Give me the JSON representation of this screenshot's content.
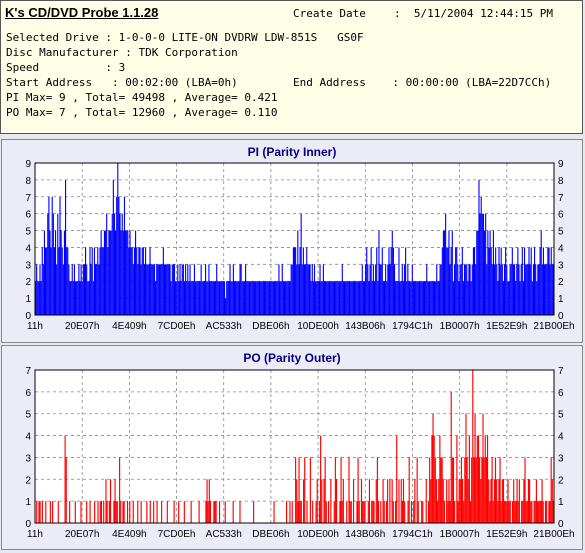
{
  "app": {
    "title": "K's CD/DVD Probe 1.1.28"
  },
  "info": {
    "create_date_label": "Create Date",
    "create_date_value": ":  5/11/2004 12:44:15 PM",
    "drive_line": "Selected Drive : 1-0-0-0 LITE-ON DVDRW LDW-851S   GS0F",
    "manufacturer_line": "Disc Manufacturer : TDK Corporation",
    "speed_line": "Speed          : 3",
    "start_address_line": "Start Address   : 00:02:00 (LBA=0h)",
    "end_address_line": "End Address    : 00:00:00 (LBA=22D7CCh)",
    "pi_summary": "PI Max= 9 , Total= 49498 , Average= 0.421",
    "po_summary": "PO Max= 7 , Total= 12960 , Average= 0.110"
  },
  "chart_data": [
    {
      "type": "bar",
      "title": "PI (Parity Inner)",
      "color": "#0000ff",
      "ylim": [
        0,
        9
      ],
      "yticks": [
        0,
        1,
        2,
        3,
        4,
        5,
        6,
        7,
        8,
        9
      ],
      "xticks": [
        "11h",
        "20E07h",
        "4E409h",
        "7CD0Eh",
        "AC533h",
        "DBE06h",
        "10DE00h",
        "143B06h",
        "1794C1h",
        "1B0007h",
        "1E52E9h",
        "21B00Eh"
      ],
      "grid": true,
      "values": [
        2,
        3,
        2,
        2,
        3,
        2,
        4,
        3,
        5,
        4,
        4,
        6,
        7,
        5,
        4,
        7,
        6,
        4,
        5,
        3,
        6,
        4,
        7,
        5,
        4,
        3,
        5,
        8,
        4,
        4,
        3,
        2,
        2,
        3,
        2,
        3,
        2,
        2,
        2,
        3,
        2,
        3,
        2,
        3,
        3,
        4,
        3,
        2,
        2,
        4,
        3,
        4,
        2,
        4,
        3,
        3,
        4,
        3,
        4,
        5,
        4,
        4,
        5,
        5,
        6,
        4,
        5,
        5,
        5,
        6,
        8,
        6,
        5,
        7,
        9,
        7,
        6,
        5,
        6,
        5,
        7,
        5,
        5,
        5,
        4,
        5,
        4,
        4,
        3,
        4,
        5,
        4,
        3,
        4,
        4,
        3,
        4,
        4,
        3,
        4,
        3,
        3,
        3,
        4,
        3,
        3,
        3,
        3,
        2,
        3,
        3,
        3,
        3,
        3,
        3,
        4,
        3,
        3,
        3,
        3,
        3,
        3,
        2,
        3,
        3,
        3,
        2,
        2,
        3,
        2,
        3,
        2,
        3,
        3,
        2,
        3,
        2,
        3,
        2,
        3,
        2,
        2,
        2,
        3,
        2,
        2,
        2,
        2,
        2,
        3,
        2,
        2,
        2,
        3,
        2,
        2,
        3,
        2,
        2,
        2,
        2,
        2,
        2,
        3,
        2,
        2,
        2,
        2,
        2,
        2,
        2,
        1,
        2,
        2,
        2,
        3,
        2,
        2,
        3,
        2,
        2,
        2,
        2,
        2,
        3,
        3,
        2,
        2,
        2,
        3,
        2,
        2,
        2,
        2,
        2,
        2,
        2,
        2,
        2,
        2,
        2,
        2,
        2,
        2,
        2,
        2,
        2,
        2,
        2,
        2,
        2,
        2,
        2,
        2,
        2,
        2,
        2,
        2,
        2,
        3,
        2,
        2,
        3,
        2,
        2,
        2,
        2,
        2,
        2,
        2,
        3,
        3,
        4,
        4,
        4,
        3,
        5,
        3,
        4,
        6,
        3,
        4,
        3,
        3,
        4,
        3,
        3,
        3,
        2,
        3,
        2,
        3,
        2,
        2,
        2,
        2,
        3,
        2,
        2,
        3,
        2,
        2,
        2,
        2,
        2,
        2,
        2,
        2,
        2,
        2,
        2,
        2,
        2,
        2,
        2,
        2,
        3,
        2,
        2,
        2,
        2,
        2,
        2,
        2,
        2,
        2,
        2,
        2,
        2,
        2,
        2,
        2,
        2,
        2,
        3,
        2,
        2,
        3,
        4,
        3,
        2,
        3,
        4,
        2,
        3,
        2,
        3,
        4,
        2,
        5,
        3,
        3,
        4,
        2,
        2,
        3,
        2,
        3,
        4,
        3,
        4,
        5,
        4,
        3,
        2,
        2,
        2,
        4,
        2,
        2,
        3,
        2,
        3,
        4,
        2,
        3,
        2,
        2,
        2,
        3,
        2,
        2,
        2,
        2,
        2,
        2,
        2,
        2,
        2,
        2,
        2,
        2,
        3,
        2,
        2,
        2,
        2,
        2,
        2,
        2,
        2,
        3,
        2,
        2,
        3,
        3,
        4,
        5,
        5,
        6,
        4,
        4,
        5,
        3,
        4,
        5,
        2,
        3,
        4,
        4,
        3,
        2,
        3,
        3,
        4,
        2,
        3,
        3,
        3,
        2,
        3,
        3,
        2,
        3,
        4,
        4,
        3,
        5,
        5,
        8,
        6,
        7,
        6,
        6,
        5,
        6,
        3,
        5,
        4,
        5,
        4,
        3,
        5,
        3,
        4,
        3,
        2,
        4,
        3,
        4,
        3,
        2,
        3,
        4,
        3,
        2,
        2,
        3,
        3,
        4,
        3,
        3,
        2,
        3,
        4,
        3,
        2,
        3,
        4,
        2,
        4,
        3,
        3,
        3,
        4,
        3,
        4,
        2,
        3,
        4,
        3,
        2,
        3,
        3,
        4,
        5,
        3,
        4,
        3,
        3,
        3,
        4,
        4,
        3,
        4,
        3,
        3
      ]
    },
    {
      "type": "bar",
      "title": "PO (Parity Outer)",
      "color": "#ff0000",
      "ylim": [
        0,
        7
      ],
      "yticks": [
        0,
        1,
        2,
        3,
        4,
        5,
        6,
        7
      ],
      "xticks": [
        "11h",
        "20E07h",
        "4E409h",
        "7CD0Eh",
        "AC533h",
        "DBE06h",
        "10DE00h",
        "143B06h",
        "1794C1h",
        "1B0007h",
        "1E52E9h",
        "21B00Eh"
      ],
      "grid": true,
      "values": [
        0,
        1,
        0,
        1,
        1,
        0,
        1,
        0,
        0,
        1,
        0,
        0,
        0,
        1,
        0,
        1,
        0,
        0,
        0,
        0,
        1,
        0,
        0,
        0,
        0,
        0,
        4,
        3,
        0,
        0,
        1,
        0,
        0,
        0,
        0,
        1,
        0,
        0,
        0,
        0,
        1,
        0,
        0,
        0,
        0,
        1,
        0,
        0,
        1,
        0,
        0,
        0,
        1,
        0,
        0,
        1,
        0,
        1,
        1,
        0,
        1,
        0,
        2,
        1,
        0,
        1,
        2,
        0,
        0,
        1,
        2,
        1,
        1,
        0,
        3,
        1,
        0,
        1,
        1,
        0,
        0,
        1,
        0,
        1,
        0,
        0,
        1,
        0,
        0,
        0,
        1,
        0,
        0,
        1,
        0,
        0,
        0,
        0,
        1,
        0,
        0,
        1,
        0,
        0,
        1,
        0,
        0,
        1,
        0,
        0,
        0,
        1,
        0,
        0,
        0,
        0,
        1,
        0,
        0,
        0,
        0,
        0,
        1,
        0,
        0,
        0,
        1,
        0,
        0,
        0,
        0,
        1,
        0,
        0,
        0,
        0,
        0,
        1,
        0,
        0,
        0,
        0,
        0,
        0,
        1,
        0,
        0,
        0,
        0,
        0,
        1,
        2,
        1,
        2,
        1,
        0,
        0,
        1,
        1,
        1,
        0,
        0,
        1,
        0,
        0,
        0,
        0,
        1,
        0,
        0,
        0,
        0,
        0,
        0,
        1,
        0,
        0,
        0,
        0,
        0,
        1,
        0,
        0,
        0,
        0,
        0,
        0,
        0,
        0,
        0,
        0,
        0,
        1,
        0,
        0,
        0,
        0,
        0,
        0,
        0,
        0,
        0,
        0,
        0,
        0,
        0,
        0,
        0,
        0,
        0,
        1,
        0,
        0,
        0,
        0,
        0,
        0,
        0,
        0,
        0,
        0,
        1,
        0,
        0,
        1,
        0,
        1,
        0,
        0,
        3,
        2,
        1,
        3,
        1,
        1,
        0,
        2,
        3,
        0,
        1,
        0,
        0,
        3,
        0,
        1,
        0,
        0,
        1,
        2,
        0,
        1,
        4,
        2,
        0,
        2,
        3,
        1,
        0,
        1,
        0,
        2,
        0,
        0,
        1,
        3,
        2,
        0,
        0,
        1,
        3,
        1,
        2,
        0,
        0,
        1,
        0,
        3,
        1,
        1,
        0,
        2,
        0,
        0,
        1,
        3,
        1,
        0,
        2,
        1,
        1,
        1,
        0,
        0,
        1,
        2,
        0,
        1,
        1,
        1,
        0,
        2,
        3,
        1,
        0,
        1,
        0,
        2,
        1,
        0,
        1,
        2,
        0,
        2,
        0,
        2,
        1,
        0,
        1,
        4,
        0,
        2,
        0,
        2,
        1,
        2,
        1,
        0,
        0,
        1,
        3,
        0,
        1,
        0,
        1,
        2,
        0,
        3,
        1,
        0,
        0,
        1,
        1,
        0,
        0,
        2,
        0,
        1,
        3,
        2,
        4,
        5,
        4,
        3,
        2,
        1,
        2,
        4,
        3,
        3,
        2,
        1,
        0,
        2,
        1,
        2,
        1,
        6,
        3,
        3,
        1,
        0,
        4,
        1,
        2,
        2,
        3,
        2,
        1,
        3,
        5,
        3,
        2,
        4,
        1,
        3,
        7,
        3,
        5,
        3,
        4,
        4,
        3,
        2,
        3,
        5,
        3,
        4,
        3,
        4,
        2,
        1,
        2,
        3,
        1,
        2,
        3,
        2,
        1,
        2,
        3,
        1,
        2,
        2,
        1,
        1,
        1,
        2,
        1,
        1,
        0,
        1,
        2,
        1,
        1,
        2,
        1,
        2,
        0,
        1,
        1,
        2,
        3,
        1,
        1,
        2,
        2,
        1,
        1,
        0,
        1,
        1,
        2,
        1,
        1,
        1,
        1,
        2,
        1,
        0,
        1,
        1,
        0,
        1,
        1,
        3,
        2,
        1
      ]
    }
  ]
}
